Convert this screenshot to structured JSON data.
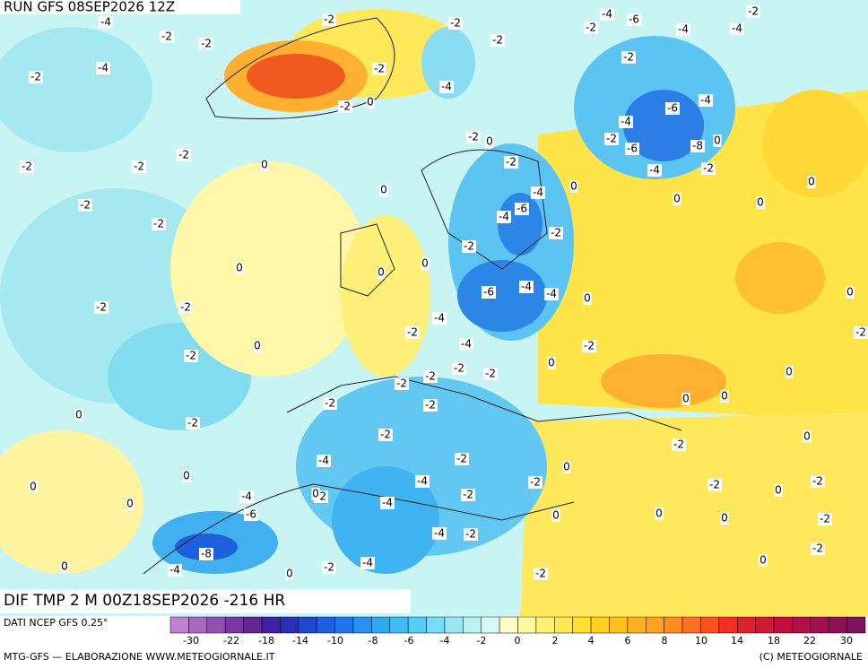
{
  "header": {
    "run": "RUN GFS 08SEP2026 12Z",
    "field": "DIF TMP 2 M 00Z18SEP2026 -216 HR"
  },
  "contour_labels": [
    -4,
    -2,
    -2,
    -4,
    -2,
    -2,
    -2,
    -2,
    0,
    -2,
    -2,
    0,
    -2,
    -2,
    0,
    -2,
    0,
    -2,
    0,
    0,
    0,
    0,
    -4,
    -6,
    -8,
    -4,
    -2,
    -2,
    -2,
    -2,
    -4,
    0,
    -2,
    -2,
    0,
    0,
    -2,
    -4,
    -6,
    -4,
    -2,
    0,
    -2,
    0,
    0,
    -6,
    -4,
    -4,
    -4,
    -2,
    -4,
    -2,
    -2,
    -2,
    -2,
    0,
    -2,
    -2,
    -2,
    -2,
    -4,
    -2,
    -4,
    -2,
    -2,
    -4,
    -2,
    0,
    -4,
    -2,
    -4,
    -2,
    0,
    -2,
    -4,
    -6,
    -2,
    -4,
    -4,
    -2,
    -2,
    -4,
    -6,
    -4,
    -2,
    -6,
    -8,
    -4,
    -2,
    0,
    0,
    0,
    0,
    0,
    0,
    -2,
    0,
    0,
    -2,
    0,
    -2,
    0,
    -2,
    -2,
    -2,
    0,
    0,
    0,
    0,
    0,
    0
  ],
  "colorbar": {
    "source": "DATI NCEP GFS 0.25°",
    "colors": [
      "#c080d0",
      "#a868c0",
      "#9050b0",
      "#7838a0",
      "#602890",
      "#4020a0",
      "#2830b8",
      "#1e48d0",
      "#1e60e0",
      "#1e78ec",
      "#2890f0",
      "#30a8f4",
      "#40bcf4",
      "#58ccf4",
      "#78dcf4",
      "#98e8f4",
      "#b8f2f4",
      "#d8f8f4",
      "#fffcc8",
      "#fff8a0",
      "#fff070",
      "#ffe850",
      "#ffe030",
      "#ffd020",
      "#ffc020",
      "#ffb020",
      "#ffa020",
      "#ff8c20",
      "#ff7020",
      "#ff5020",
      "#f03020",
      "#e02030",
      "#d01838",
      "#c01040",
      "#b01048",
      "#a01050",
      "#901058",
      "#801060"
    ],
    "ticks": [
      -30,
      -22,
      -18,
      -14,
      -10,
      -8,
      -6,
      -4,
      -2,
      0,
      2,
      4,
      6,
      8,
      10,
      14,
      18,
      22,
      30
    ]
  },
  "footer": {
    "left": "MTG-GFS — ELABORAZIONE WWW.METEOGIORNALE.IT",
    "right": "(C) METEOGIORNALE"
  }
}
